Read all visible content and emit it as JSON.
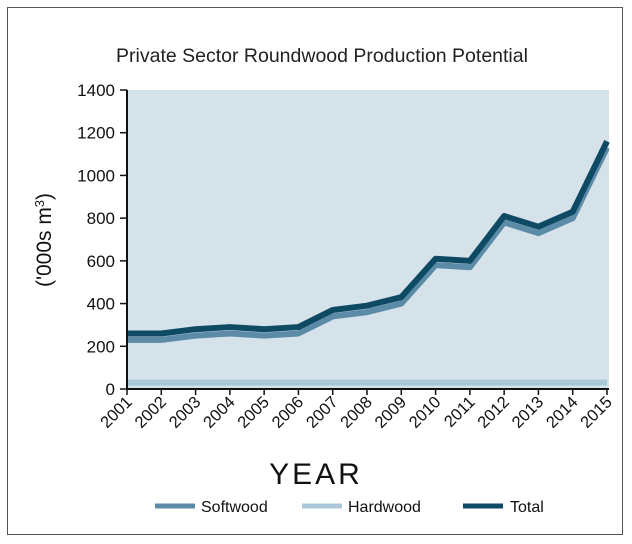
{
  "chart_data": {
    "type": "line",
    "title": "Private Sector Roundwood Production Potential",
    "xlabel": "YEAR",
    "ylabel_main": "('000s m",
    "ylabel_sup": "3",
    "ylabel_close": ")",
    "ylim": [
      0,
      1400
    ],
    "yticks": [
      0,
      200,
      400,
      600,
      800,
      1000,
      1200,
      1400
    ],
    "categories": [
      "2001",
      "2002",
      "2003",
      "2004",
      "2005",
      "2006",
      "2007",
      "2008",
      "2009",
      "2010",
      "2011",
      "2012",
      "2013",
      "2014",
      "2015"
    ],
    "series": [
      {
        "name": "Softwood",
        "color": "#5b8ba6",
        "values": [
          230,
          230,
          250,
          260,
          250,
          260,
          340,
          360,
          400,
          580,
          570,
          780,
          730,
          800,
          1130
        ]
      },
      {
        "name": "Hardwood",
        "color": "#a9c7d6",
        "values": [
          30,
          30,
          30,
          30,
          30,
          30,
          30,
          30,
          30,
          30,
          30,
          30,
          30,
          30,
          30
        ]
      },
      {
        "name": "Total",
        "color": "#0f4a64",
        "values": [
          260,
          260,
          280,
          290,
          280,
          290,
          370,
          390,
          430,
          610,
          600,
          810,
          760,
          830,
          1160
        ]
      }
    ],
    "plot_background": "#d6e2ea",
    "grid": false,
    "legend_position": "bottom"
  }
}
